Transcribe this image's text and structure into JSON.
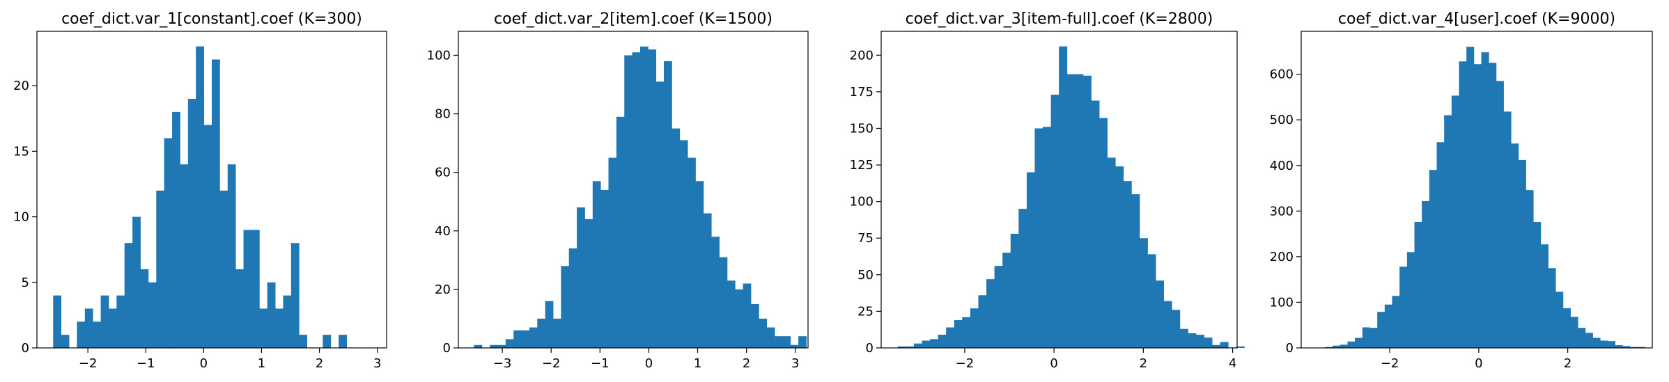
{
  "figure": {
    "background": "#ffffff"
  },
  "chart_data": [
    {
      "type": "bar",
      "title": "coef_dict.var_1[constant].coef (K=300)",
      "xlabel": "",
      "ylabel": "",
      "color": "#1f77b4",
      "xlim": [
        -2.88,
        3.16
      ],
      "ylim": [
        0,
        24.15
      ],
      "xticks": [
        -2,
        -1,
        0,
        1,
        2,
        3
      ],
      "xtick_labels": [
        "−2",
        "−1",
        "0",
        "1",
        "2",
        "3"
      ],
      "yticks": [
        0,
        5,
        10,
        15,
        20
      ],
      "ytick_labels": [
        "0",
        "5",
        "10",
        "15",
        "20"
      ],
      "bin_start": -2.6,
      "bin_width": 0.137,
      "values": [
        4,
        1,
        0,
        2,
        3,
        2,
        4,
        3,
        4,
        8,
        10,
        6,
        5,
        12,
        16,
        18,
        14,
        19,
        23,
        17,
        22,
        12,
        14,
        6,
        9,
        9,
        3,
        5,
        3,
        4,
        8,
        1,
        0,
        0,
        1,
        0,
        1
      ]
    },
    {
      "type": "bar",
      "title": "coef_dict.var_2[item].coef (K=1500)",
      "xlabel": "",
      "ylabel": "",
      "color": "#1f77b4",
      "xlim": [
        -3.9,
        3.26
      ],
      "ylim": [
        0,
        108.2
      ],
      "xticks": [
        -3,
        -2,
        -1,
        0,
        1,
        2,
        3
      ],
      "xtick_labels": [
        "−3",
        "−2",
        "−1",
        "0",
        "1",
        "2",
        "3"
      ],
      "yticks": [
        0,
        20,
        40,
        60,
        80,
        100
      ],
      "ytick_labels": [
        "0",
        "20",
        "40",
        "60",
        "80",
        "100"
      ],
      "bin_start": -3.58,
      "bin_width": 0.162,
      "values": [
        1,
        0,
        1,
        1,
        3,
        6,
        6,
        7,
        10,
        16,
        10,
        28,
        34,
        48,
        44,
        57,
        54,
        65,
        79,
        100,
        101,
        103,
        102,
        91,
        98,
        75,
        71,
        65,
        57,
        46,
        38,
        31,
        23,
        20,
        22,
        15,
        10,
        7,
        4,
        4,
        1,
        4
      ]
    },
    {
      "type": "bar",
      "title": "coef_dict.var_3[item-full].coef (K=2800)",
      "xlabel": "",
      "ylabel": "",
      "color": "#1f77b4",
      "xlim": [
        -3.87,
        4.1
      ],
      "ylim": [
        0,
        216.3
      ],
      "xticks": [
        -2,
        0,
        2,
        4
      ],
      "xtick_labels": [
        "−2",
        "0",
        "2",
        "4"
      ],
      "yticks": [
        0,
        25,
        50,
        75,
        100,
        125,
        150,
        175,
        200
      ],
      "ytick_labels": [
        "0",
        "25",
        "50",
        "75",
        "100",
        "125",
        "150",
        "175",
        "200"
      ],
      "bin_start": -3.5,
      "bin_width": 0.1805,
      "values": [
        1,
        1,
        3,
        5,
        6,
        9,
        14,
        19,
        21,
        27,
        36,
        47,
        56,
        65,
        78,
        95,
        120,
        150,
        151,
        173,
        206,
        187,
        187,
        186,
        169,
        157,
        130,
        124,
        114,
        105,
        75,
        64,
        46,
        32,
        26,
        13,
        10,
        9,
        7,
        2,
        4,
        0,
        1
      ]
    },
    {
      "type": "bar",
      "title": "coef_dict.var_4[user].coef (K=9000)",
      "xlabel": "",
      "ylabel": "",
      "color": "#1f77b4",
      "xlim": [
        -3.99,
        3.9
      ],
      "ylim": [
        0,
        694
      ],
      "xticks": [
        -2,
        0,
        2
      ],
      "xtick_labels": [
        "−2",
        "0",
        "2"
      ],
      "yticks": [
        0,
        100,
        200,
        300,
        400,
        500,
        600
      ],
      "ytick_labels": [
        "0",
        "100",
        "200",
        "300",
        "400",
        "500",
        "600"
      ],
      "bin_start": -3.45,
      "bin_width": 0.167,
      "values": [
        2,
        5,
        7,
        14,
        22,
        45,
        44,
        79,
        95,
        114,
        178,
        210,
        276,
        322,
        390,
        451,
        510,
        553,
        628,
        660,
        622,
        648,
        625,
        585,
        518,
        448,
        412,
        346,
        276,
        227,
        175,
        123,
        87,
        68,
        44,
        33,
        22,
        16,
        15,
        6,
        4,
        2,
        2
      ]
    }
  ]
}
